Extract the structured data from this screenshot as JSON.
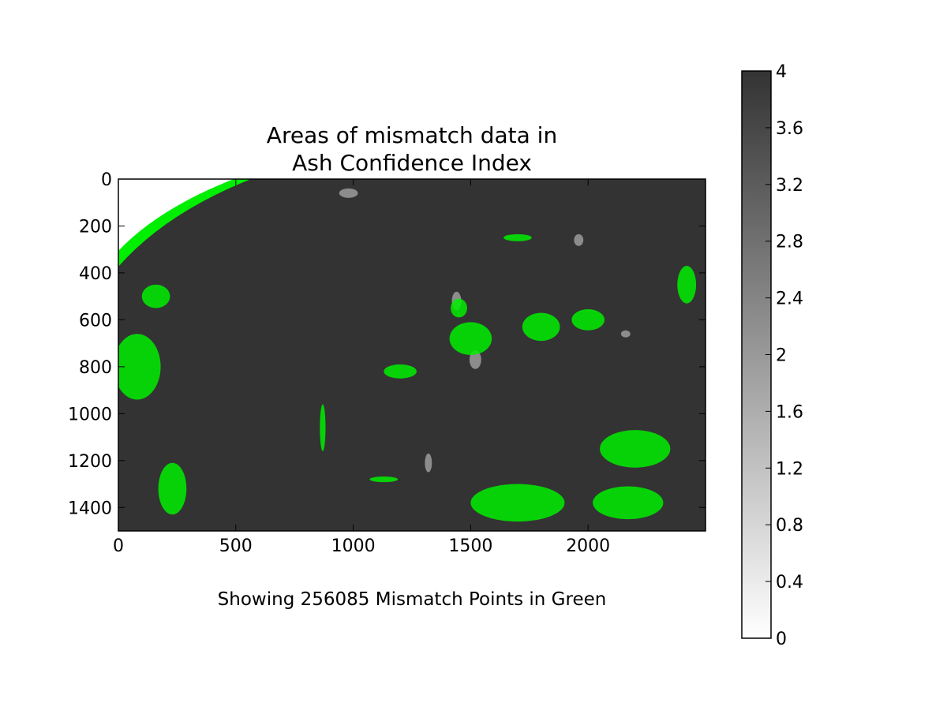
{
  "chart_data": {
    "type": "heatmap",
    "title": [
      "Areas of mismatch data in",
      "Ash Confidence Index"
    ],
    "annotation": "Showing 256085 Mismatch Points in Green",
    "xlabel": "",
    "ylabel": "",
    "xlim": [
      0,
      2500
    ],
    "ylim": [
      1500,
      0
    ],
    "x_ticks": [
      0,
      500,
      1000,
      1500,
      2000
    ],
    "y_ticks": [
      0,
      200,
      400,
      600,
      800,
      1000,
      1200,
      1400
    ],
    "grid": false,
    "colormap": "gray_r",
    "colorbar": {
      "vmin": 0,
      "vmax": 4,
      "ticks": [
        "0",
        "0.4",
        "0.8",
        "1.2",
        "1.6",
        "2",
        "2.4",
        "2.8",
        "3.2",
        "3.6",
        "4"
      ]
    },
    "mismatch_points": 256085,
    "colors": {
      "background_value_color": "#333333",
      "mid_value_color": "#8c8c8c",
      "mismatch_color": "#00ee00",
      "off_disk_color": "#ffffff"
    },
    "mismatch_regions": [
      {
        "x": 80,
        "y": 800,
        "rx": 100,
        "ry": 140
      },
      {
        "x": 160,
        "y": 500,
        "rx": 60,
        "ry": 50
      },
      {
        "x": 230,
        "y": 1320,
        "rx": 60,
        "ry": 110
      },
      {
        "x": 1450,
        "y": 550,
        "rx": 35,
        "ry": 40
      },
      {
        "x": 1500,
        "y": 680,
        "rx": 90,
        "ry": 70
      },
      {
        "x": 1800,
        "y": 630,
        "rx": 80,
        "ry": 60
      },
      {
        "x": 2000,
        "y": 600,
        "rx": 70,
        "ry": 45
      },
      {
        "x": 1700,
        "y": 250,
        "rx": 60,
        "ry": 15
      },
      {
        "x": 1200,
        "y": 820,
        "rx": 70,
        "ry": 30
      },
      {
        "x": 1130,
        "y": 1280,
        "rx": 60,
        "ry": 12
      },
      {
        "x": 870,
        "y": 1060,
        "rx": 12,
        "ry": 100
      },
      {
        "x": 2420,
        "y": 450,
        "rx": 40,
        "ry": 80
      },
      {
        "x": 2200,
        "y": 1150,
        "rx": 150,
        "ry": 80
      },
      {
        "x": 1700,
        "y": 1380,
        "rx": 200,
        "ry": 80
      },
      {
        "x": 2170,
        "y": 1380,
        "rx": 150,
        "ry": 70
      }
    ],
    "mid_value_regions": [
      {
        "x": 1440,
        "y": 520,
        "rx": 20,
        "ry": 40
      },
      {
        "x": 1520,
        "y": 770,
        "rx": 25,
        "ry": 40
      },
      {
        "x": 1320,
        "y": 1210,
        "rx": 15,
        "ry": 40
      },
      {
        "x": 980,
        "y": 60,
        "rx": 40,
        "ry": 20
      },
      {
        "x": 1960,
        "y": 260,
        "rx": 20,
        "ry": 25
      },
      {
        "x": 2160,
        "y": 660,
        "rx": 20,
        "ry": 15
      }
    ]
  }
}
